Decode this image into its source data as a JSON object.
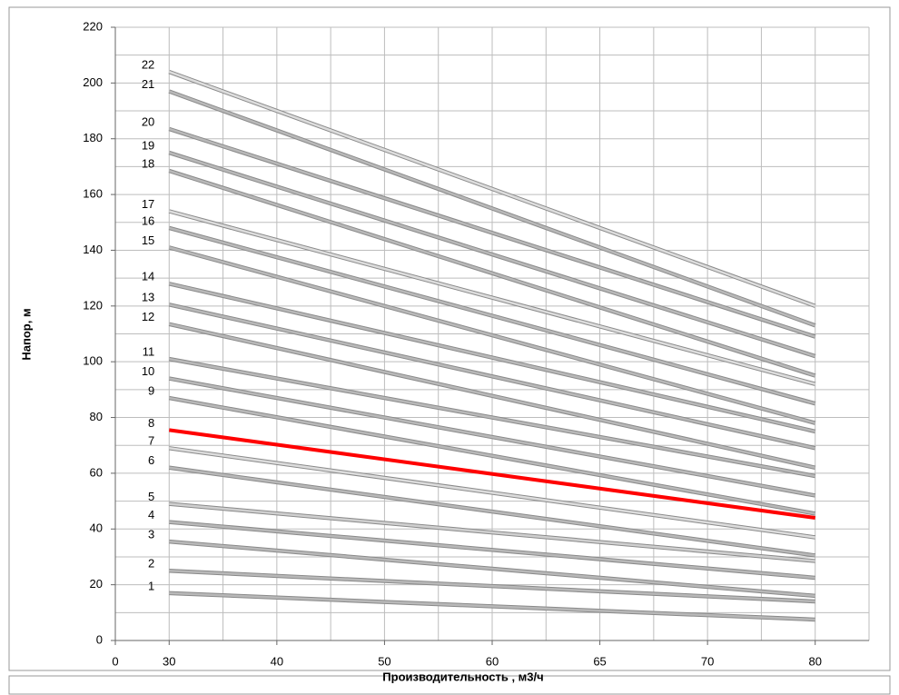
{
  "chart_data": {
    "type": "line",
    "y_label": "Напор, м",
    "x_label": "Производительность , м3/ч",
    "xlim": [
      0,
      14
    ],
    "xticks": [
      {
        "value": 0,
        "label": "0"
      },
      {
        "value": 1,
        "label": "30"
      },
      {
        "value": 3,
        "label": "40"
      },
      {
        "value": 5,
        "label": "50"
      },
      {
        "value": 7,
        "label": "60"
      },
      {
        "value": 9,
        "label": "65"
      },
      {
        "value": 11,
        "label": "70"
      },
      {
        "value": 13,
        "label": "80"
      }
    ],
    "xgrid_step": 1,
    "ylim": [
      0,
      220
    ],
    "yticks": [
      0,
      20,
      40,
      60,
      80,
      100,
      120,
      140,
      160,
      180,
      200,
      220
    ],
    "ygrid_step": 10,
    "grid": true,
    "x": [
      1,
      13
    ],
    "series": [
      {
        "name": "1",
        "color": "#b8b8b8",
        "values": [
          17,
          7.5
        ]
      },
      {
        "name": "2",
        "color": "#b8b8b8",
        "values": [
          25,
          14
        ]
      },
      {
        "name": "3",
        "color": "#b8b8b8",
        "values": [
          35.5,
          16
        ]
      },
      {
        "name": "4",
        "color": "#b8b8b8",
        "values": [
          42.5,
          22.5
        ]
      },
      {
        "name": "5",
        "color": "#cfcfcf",
        "values": [
          49,
          28.5
        ]
      },
      {
        "name": "6",
        "color": "#b8b8b8",
        "values": [
          62,
          30.5
        ]
      },
      {
        "name": "7",
        "color": "#dcdcdc",
        "values": [
          69,
          37
        ]
      },
      {
        "name": "8",
        "color": "#ff0000",
        "values": [
          75.5,
          44
        ]
      },
      {
        "name": "9",
        "color": "#b8b8b8",
        "values": [
          87,
          45.5
        ]
      },
      {
        "name": "10",
        "color": "#b8b8b8",
        "values": [
          94,
          52
        ]
      },
      {
        "name": "11",
        "color": "#b8b8b8",
        "values": [
          101,
          59
        ]
      },
      {
        "name": "12",
        "color": "#b8b8b8",
        "values": [
          113.5,
          62
        ]
      },
      {
        "name": "13",
        "color": "#b8b8b8",
        "values": [
          120.5,
          69
        ]
      },
      {
        "name": "14",
        "color": "#b8b8b8",
        "values": [
          128,
          75
        ]
      },
      {
        "name": "15",
        "color": "#b8b8b8",
        "values": [
          141,
          78
        ]
      },
      {
        "name": "16",
        "color": "#b8b8b8",
        "values": [
          148,
          85
        ]
      },
      {
        "name": "17",
        "color": "#dcdcdc",
        "values": [
          154,
          92
        ]
      },
      {
        "name": "18",
        "color": "#b8b8b8",
        "values": [
          168.5,
          95
        ]
      },
      {
        "name": "19",
        "color": "#b8b8b8",
        "values": [
          175,
          102
        ]
      },
      {
        "name": "20",
        "color": "#b8b8b8",
        "values": [
          183.5,
          109
        ]
      },
      {
        "name": "21",
        "color": "#b8b8b8",
        "values": [
          197,
          113
        ]
      },
      {
        "name": "22",
        "color": "#dcdcdc",
        "values": [
          204,
          120
        ]
      }
    ]
  }
}
